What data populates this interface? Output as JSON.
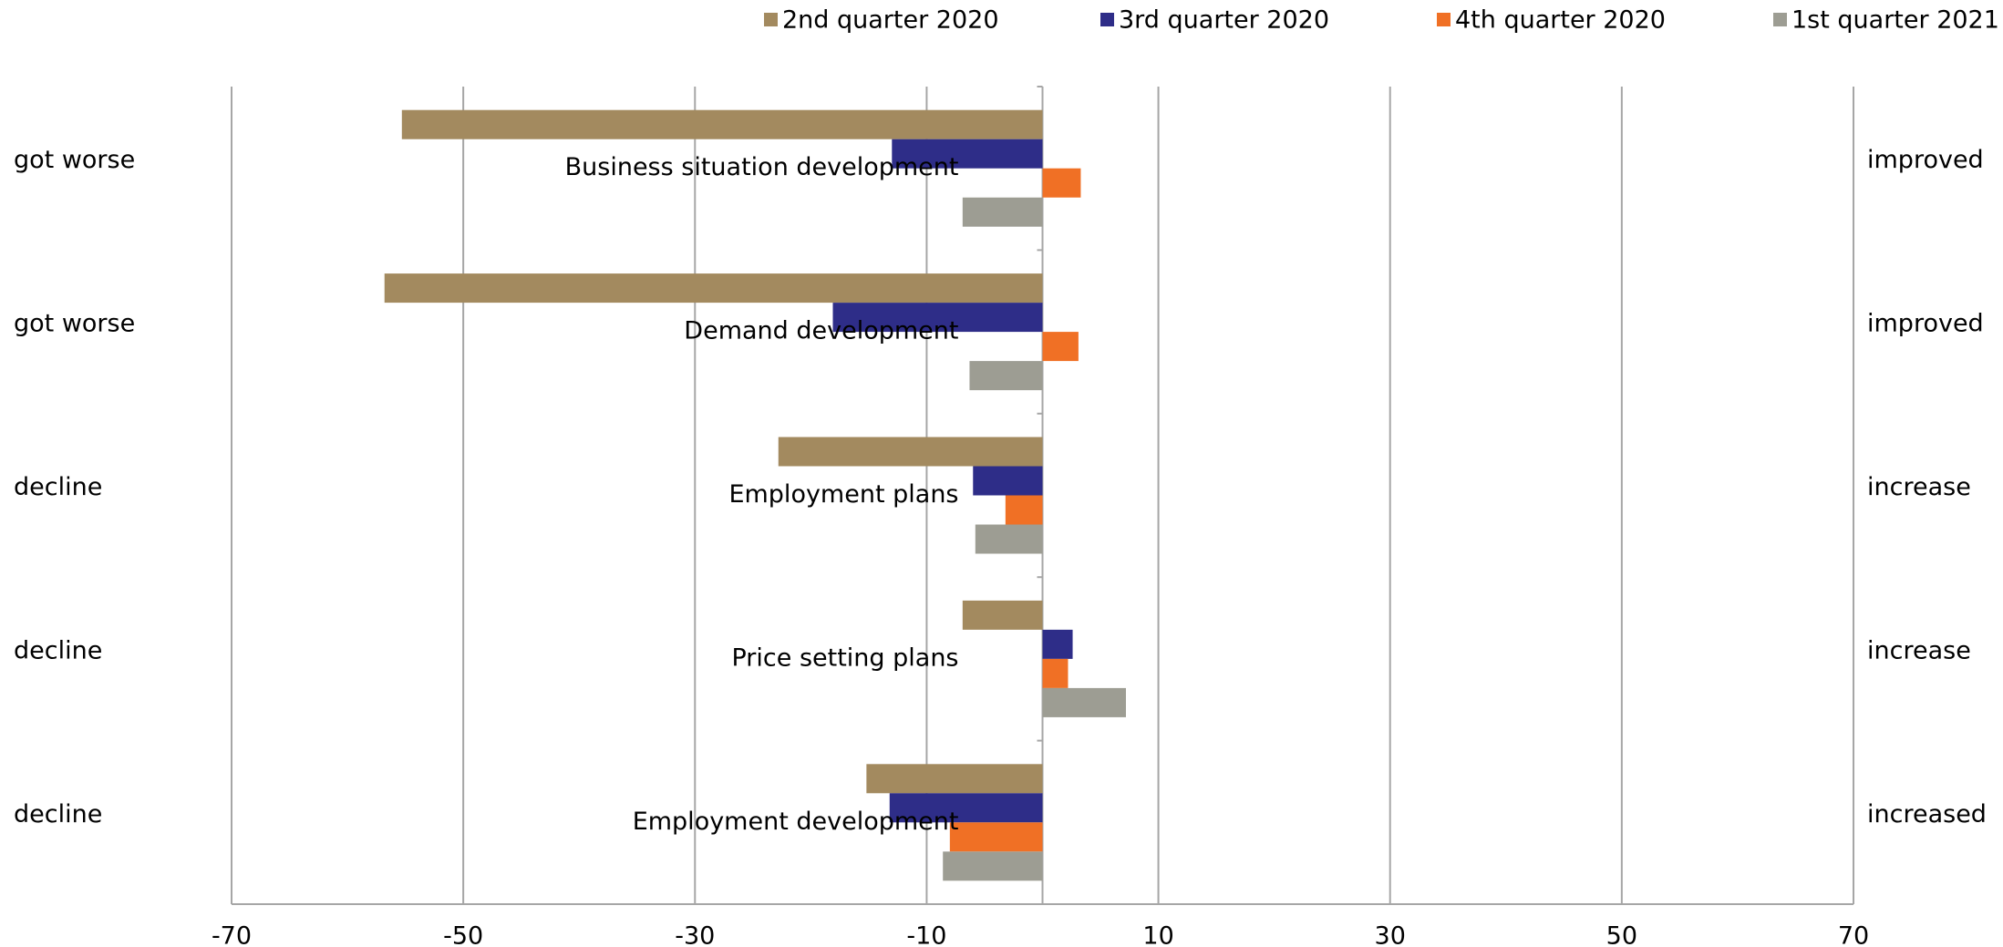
{
  "chart_data": {
    "type": "hbar",
    "categories": [
      "Business situation development",
      "Demand development",
      "Employment plans",
      "Price setting plans",
      "Employment development"
    ],
    "left_labels": [
      "got worse",
      "got worse",
      "decline",
      "decline",
      "decline"
    ],
    "right_labels": [
      "improved",
      "improved",
      "increase",
      "increase",
      "increased"
    ],
    "series": [
      {
        "name": "2nd quarter 2020",
        "color": "#a38a5f",
        "values": [
          -55.3,
          -56.8,
          -22.8,
          -6.9,
          -15.2
        ]
      },
      {
        "name": "3rd quarter 2020",
        "color": "#2e2d88",
        "values": [
          -13.0,
          -18.1,
          -6.0,
          2.6,
          -13.2
        ]
      },
      {
        "name": "4th quarter 2020",
        "color": "#f07025",
        "values": [
          3.3,
          3.1,
          -3.2,
          2.2,
          -8.0
        ]
      },
      {
        "name": "1st quarter 2021",
        "color": "#9d9d93",
        "values": [
          -6.9,
          -6.3,
          -5.8,
          7.2,
          -8.6
        ]
      }
    ],
    "xlim": [
      -70,
      70
    ],
    "xticks": [
      -70,
      -50,
      -30,
      -10,
      10,
      30,
      50,
      70
    ],
    "grid": true
  }
}
